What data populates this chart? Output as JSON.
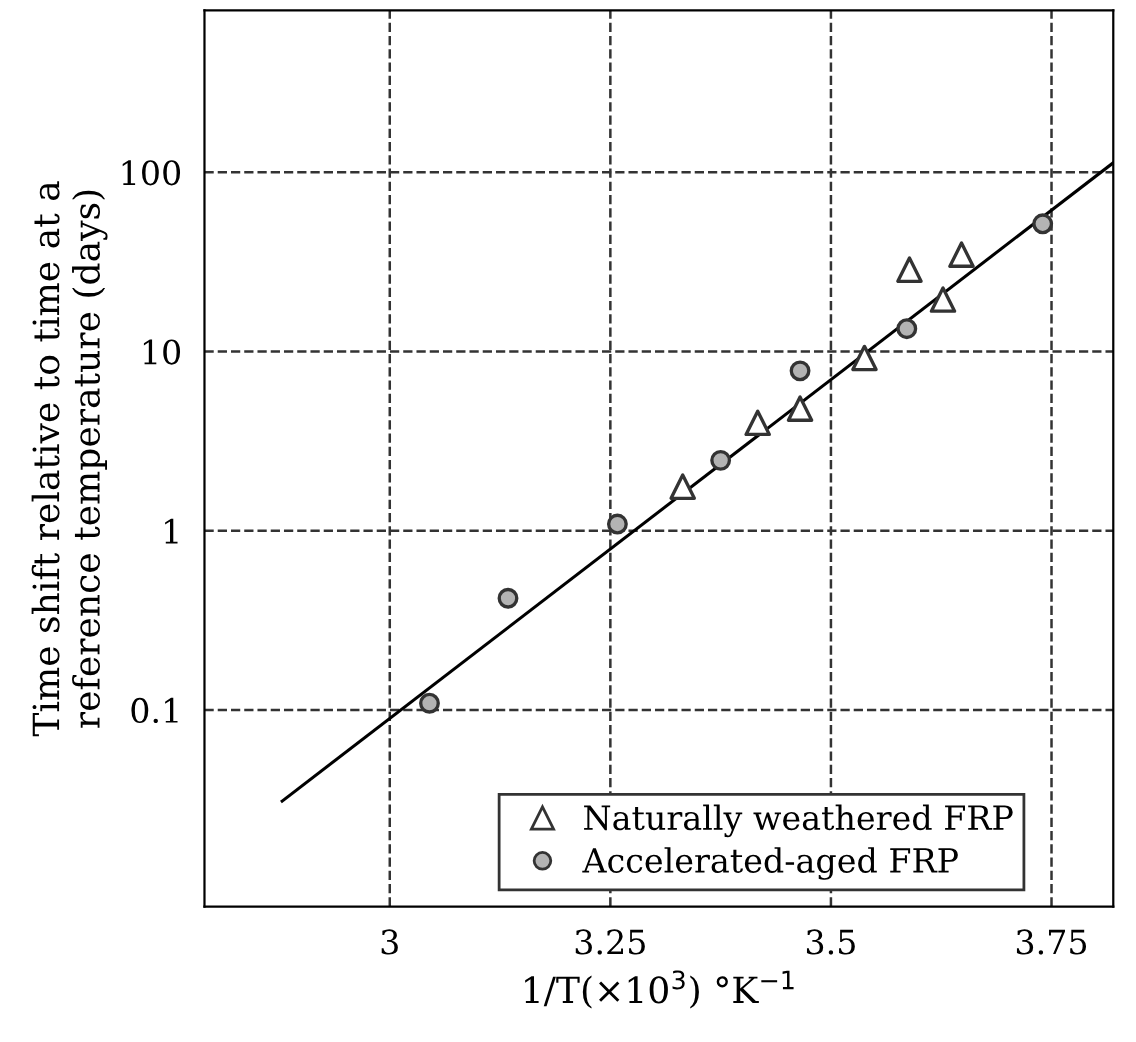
{
  "chart_data": {
    "type": "scatter",
    "xlabel": "1/T(×10$^{3}$) °K$^{−1}$",
    "ylabel": "Time shift relative to time at a\nreference temperature (days)",
    "series": [
      {
        "name": "Naturally weathered FRP",
        "color": "#ffffff",
        "marker": "triangle",
        "x": [
          3.332,
          3.417,
          3.465,
          3.538,
          3.589,
          3.627,
          3.648
        ],
        "values": [
          1.76,
          4.0,
          4.8,
          9.2,
          28.6,
          19.5,
          34.7
        ]
      },
      {
        "name": "Accelerated-aged FRP",
        "color": "#b3b3b3",
        "marker": "circle",
        "x": [
          3.045,
          3.134,
          3.258,
          3.375,
          3.465,
          3.586,
          3.74
        ],
        "values": [
          0.109,
          0.42,
          1.09,
          2.47,
          7.8,
          13.4,
          51.6
        ]
      },
      {
        "type": "line",
        "color": "#000000",
        "marker": "none",
        "x": [
          2.878,
          3.82
        ],
        "values": [
          0.031,
          113
        ]
      }
    ],
    "log": "y",
    "xlim": [
      2.79,
      3.82
    ],
    "ylim": [
      0.008,
      800
    ],
    "xticks": [
      3,
      3.25,
      3.5,
      3.75
    ],
    "yticks": [
      0.1,
      1,
      10,
      100
    ],
    "grid": true,
    "legend": "bottom right"
  }
}
